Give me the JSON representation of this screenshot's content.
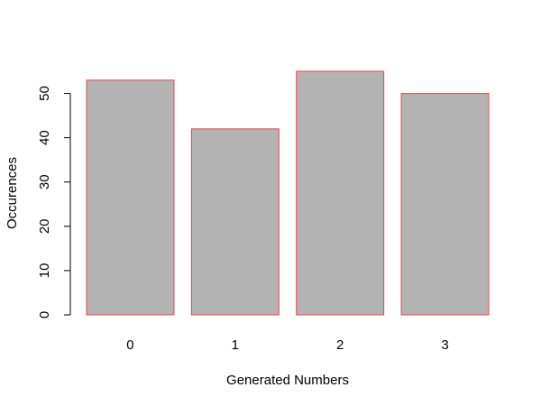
{
  "chart_data": {
    "type": "bar",
    "title": "",
    "xlabel": "Generated Numbers",
    "ylabel": "Occurences",
    "categories": [
      "0",
      "1",
      "2",
      "3"
    ],
    "values": [
      53,
      42,
      55,
      50
    ],
    "ylim": [
      0,
      55
    ],
    "yticks": [
      0,
      10,
      20,
      30,
      40,
      50
    ],
    "grid": false,
    "legend": "none",
    "bar_fill": "#b3b3b3",
    "bar_border": "#e8474e"
  }
}
